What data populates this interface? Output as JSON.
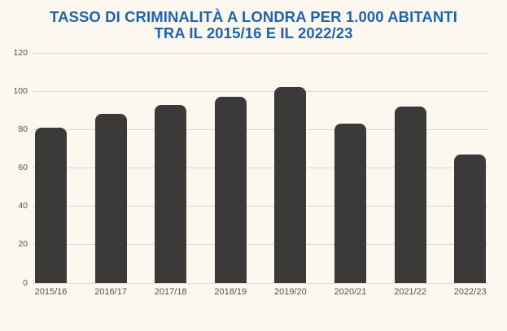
{
  "chart_data": {
    "type": "bar",
    "title": "TASSO DI CRIMINALITÀ A LONDRA PER 1.000 ABITANTI TRA IL 2015/16 E IL 2022/23",
    "title_line1": "TASSO DI CRIMINALITÀ A LONDRA PER 1.000 ABITANTI",
    "title_line2": "TRA IL 2015/16 E IL 2022/23",
    "categories": [
      "2015/16",
      "2016/17",
      "2017/18",
      "2018/19",
      "2019/20",
      "2020/21",
      "2021/22",
      "2022/23"
    ],
    "values": [
      81,
      88,
      93,
      97,
      102,
      83,
      92,
      67
    ],
    "xlabel": "",
    "ylabel": "",
    "ylim": [
      0,
      120
    ],
    "yticks": [
      0,
      20,
      40,
      60,
      80,
      100,
      120
    ],
    "grid": true,
    "legend": "none",
    "colors": {
      "background": "#fcf8f0",
      "bar": "#3b3a38",
      "title": "#2063ac",
      "axis_label": "#55504a",
      "gridline": "#dcd8d2"
    }
  }
}
